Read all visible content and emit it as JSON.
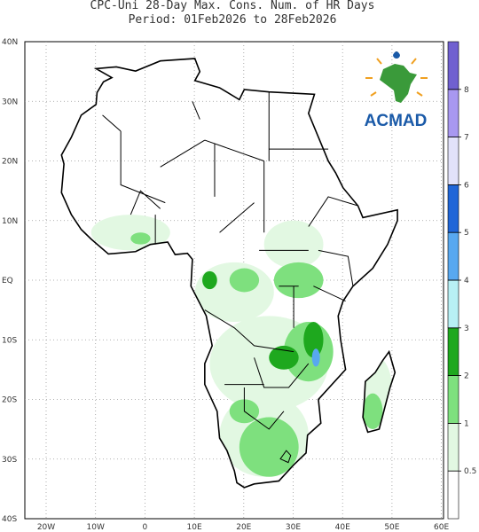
{
  "title": {
    "line1": "CPC-Uni 28-Day Max. Cons. Num. of HR Days",
    "line2": "Period: 01Feb2026 to 28Feb2026"
  },
  "lat_labels": [
    "40N",
    "30N",
    "20N",
    "10N",
    "EQ",
    "10S",
    "20S",
    "30S",
    "40S"
  ],
  "lon_labels": [
    "20W",
    "10W",
    "0",
    "10E",
    "20E",
    "30E",
    "40E",
    "50E",
    "60E"
  ],
  "colorbar": {
    "levels": [
      0.5,
      1,
      2,
      3,
      4,
      5,
      6,
      7,
      8
    ],
    "colors": [
      "#ffffff",
      "#e2f8e2",
      "#7ee07e",
      "#1ea81e",
      "#b8f0f4",
      "#58a8f0",
      "#2066d8",
      "#e2e2fa",
      "#a898f0",
      "#7060d0"
    ]
  },
  "logo": {
    "text": "ACMAD"
  }
}
